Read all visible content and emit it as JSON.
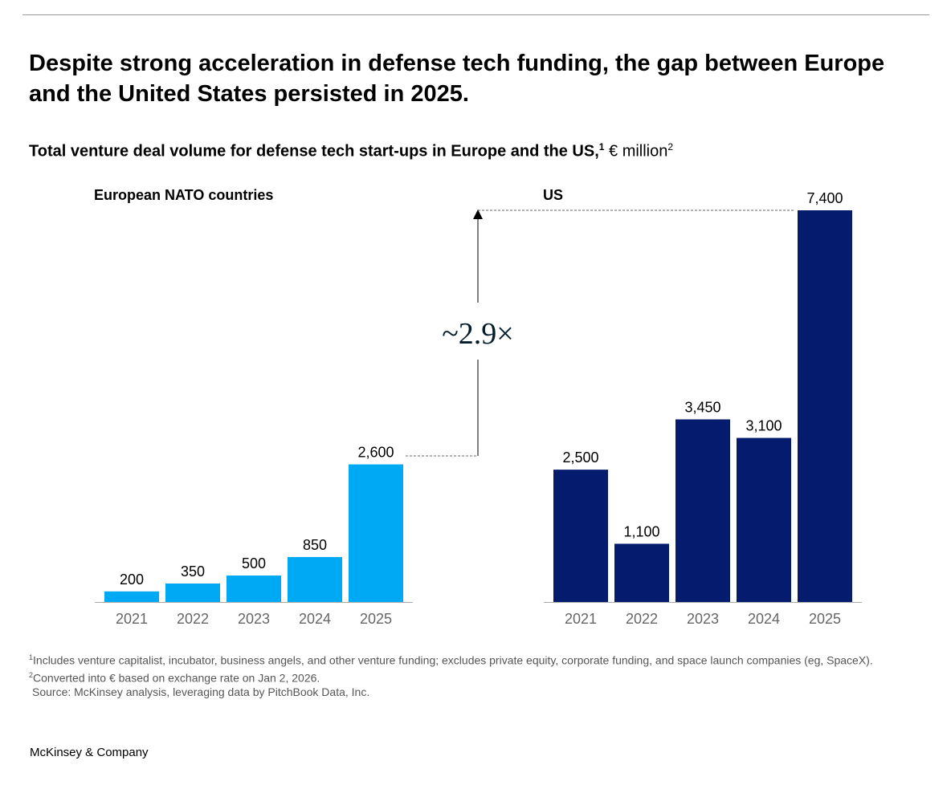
{
  "title": "Despite strong acceleration in defense tech funding, the gap between Europe and the United States persisted in 2025.",
  "subtitle": {
    "text": "Total venture deal volume for defense tech start-ups in Europe and the US,",
    "sup1": "1",
    "unit": " € million",
    "sup2": "2"
  },
  "chart_data": [
    {
      "type": "bar",
      "title": "European NATO countries",
      "categories": [
        "2021",
        "2022",
        "2023",
        "2024",
        "2025"
      ],
      "values": [
        200,
        350,
        500,
        850,
        2600
      ],
      "labels": [
        "200",
        "350",
        "500",
        "850",
        "2,600"
      ],
      "color": "#00A9F4",
      "ylabel": "€ million"
    },
    {
      "type": "bar",
      "title": "US",
      "categories": [
        "2021",
        "2022",
        "2023",
        "2024",
        "2025"
      ],
      "values": [
        2500,
        1100,
        3450,
        3100,
        7400
      ],
      "labels": [
        "2,500",
        "1,100",
        "3,450",
        "3,100",
        "7,400"
      ],
      "color": "#051C6E",
      "ylabel": "€ million"
    }
  ],
  "annotation": "~2.9×",
  "footnotes": {
    "f1_sup": "1",
    "f1": "Includes venture capitalist, incubator, business angels, and other venture funding; excludes private equity, corporate funding, and space launch companies (eg, SpaceX).",
    "f2_sup": "2",
    "f2": "Converted into € based on exchange rate on Jan 2, 2026.",
    "source": "Source: McKinsey analysis, leveraging data by PitchBook Data, Inc."
  },
  "brand": "McKinsey & Company"
}
